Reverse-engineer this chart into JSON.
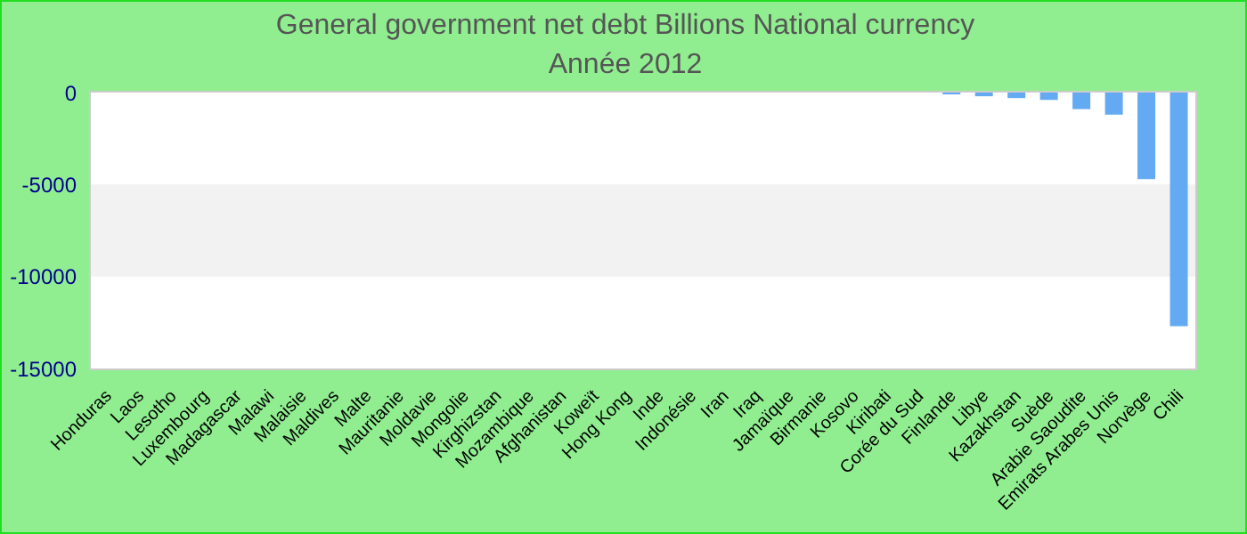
{
  "chart_data": {
    "type": "bar",
    "title": "General government net debt Billions National currency",
    "subtitle": "Année 2012",
    "categories": [
      "Honduras",
      "Laos",
      "Lesotho",
      "Luxembourg",
      "Madagascar",
      "Malawi",
      "Malaisie",
      "Maldives",
      "Malte",
      "Mauritanie",
      "Moldavie",
      "Mongolie",
      "Kirghizstan",
      "Mozambique",
      "Afghanistan",
      "Koweït",
      "Hong Kong",
      "Inde",
      "Indonésie",
      "Iran",
      "Iraq",
      "Jamaïque",
      "Birmanie",
      "Kosovo",
      "Kiribati",
      "Corée du Sud",
      "Finlande",
      "Libye",
      "Kazakhstan",
      "Suède",
      "Arabie Saoudite",
      "Emirats Arabes Unis",
      "Norvège",
      "Chili"
    ],
    "values": [
      0,
      0,
      0,
      0,
      0,
      0,
      0,
      0,
      0,
      0,
      0,
      0,
      0,
      0,
      0,
      0,
      0,
      0,
      0,
      0,
      0,
      0,
      0,
      0,
      0,
      0,
      -100,
      -200,
      -300,
      -400,
      -900,
      -1200,
      -4700,
      -12700
    ],
    "color": "#63aaf2",
    "ylim": [
      -15000,
      0
    ],
    "yticks": [
      0,
      -5000,
      -10000,
      -15000
    ],
    "bands": [
      {
        "axis": "y",
        "from": -10000,
        "to": -5000,
        "color": "#f2f2f2"
      }
    ]
  }
}
